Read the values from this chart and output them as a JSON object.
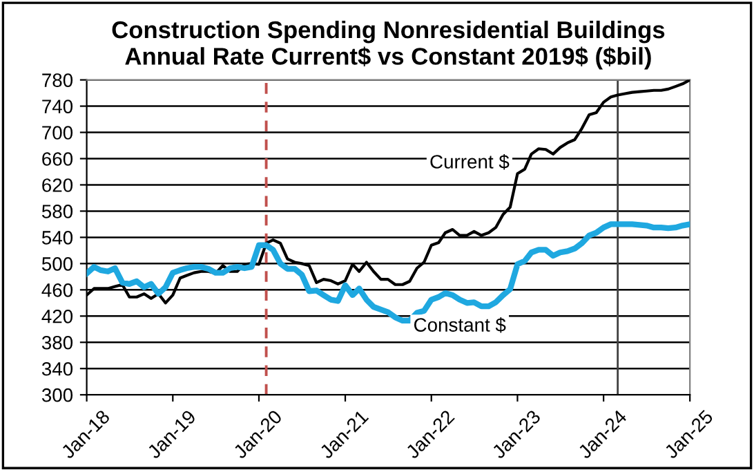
{
  "chart_data": {
    "type": "line",
    "title": "Construction Spending Nonresidential Buildings\nAnnual Rate Current$ vs Constant 2019$ ($bil)",
    "x": [
      "2018-01",
      "2018-02",
      "2018-03",
      "2018-04",
      "2018-05",
      "2018-06",
      "2018-07",
      "2018-08",
      "2018-09",
      "2018-10",
      "2018-11",
      "2018-12",
      "2019-01",
      "2019-02",
      "2019-03",
      "2019-04",
      "2019-05",
      "2019-06",
      "2019-07",
      "2019-08",
      "2019-09",
      "2019-10",
      "2019-11",
      "2019-12",
      "2020-01",
      "2020-02",
      "2020-03",
      "2020-04",
      "2020-05",
      "2020-06",
      "2020-07",
      "2020-08",
      "2020-09",
      "2020-10",
      "2020-11",
      "2020-12",
      "2021-01",
      "2021-02",
      "2021-03",
      "2021-04",
      "2021-05",
      "2021-06",
      "2021-07",
      "2021-08",
      "2021-09",
      "2021-10",
      "2021-11",
      "2021-12",
      "2022-01",
      "2022-02",
      "2022-03",
      "2022-04",
      "2022-05",
      "2022-06",
      "2022-07",
      "2022-08",
      "2022-09",
      "2022-10",
      "2022-11",
      "2022-12",
      "2023-01",
      "2023-02",
      "2023-03",
      "2023-04",
      "2023-05",
      "2023-06",
      "2023-07",
      "2023-08",
      "2023-09",
      "2023-10",
      "2023-11",
      "2023-12",
      "2024-01",
      "2024-02",
      "2024-03",
      "2024-04",
      "2024-05",
      "2024-06",
      "2024-07",
      "2024-08",
      "2024-09",
      "2024-10",
      "2024-11",
      "2024-12",
      "2025-01"
    ],
    "series": [
      {
        "name": "Current $",
        "color": "#000000",
        "values": [
          452,
          462,
          462,
          462,
          465,
          468,
          449,
          449,
          454,
          447,
          454,
          440,
          452,
          478,
          482,
          486,
          488,
          488,
          485,
          497,
          488,
          488,
          499,
          500,
          499,
          531,
          536,
          531,
          507,
          502,
          500,
          497,
          471,
          476,
          474,
          469,
          474,
          499,
          488,
          502,
          488,
          476,
          476,
          468,
          468,
          473,
          493,
          502,
          528,
          532,
          547,
          552,
          543,
          543,
          549,
          543,
          547,
          555,
          575,
          586,
          637,
          644,
          667,
          675,
          674,
          667,
          677,
          684,
          689,
          706,
          727,
          730,
          746,
          754,
          757,
          759,
          761,
          762,
          763,
          764,
          764,
          766,
          770,
          774,
          780
        ]
      },
      {
        "name": "Constant $",
        "color": "#1fa8e0",
        "values": [
          485,
          495,
          490,
          488,
          493,
          471,
          469,
          473,
          464,
          469,
          454,
          464,
          486,
          490,
          493,
          495,
          495,
          492,
          486,
          486,
          493,
          495,
          493,
          495,
          528,
          528,
          521,
          500,
          492,
          492,
          483,
          458,
          459,
          452,
          445,
          443,
          467,
          452,
          462,
          445,
          434,
          430,
          426,
          418,
          413,
          413,
          425,
          428,
          445,
          449,
          455,
          452,
          445,
          440,
          441,
          435,
          435,
          441,
          452,
          461,
          499,
          504,
          517,
          521,
          521,
          512,
          517,
          519,
          523,
          531,
          543,
          547,
          555,
          560,
          560,
          560,
          560,
          559,
          558,
          555,
          555,
          554,
          555,
          558,
          560
        ]
      }
    ],
    "xlim": [
      "2018-01",
      "2025-01"
    ],
    "xticks": [
      {
        "value": "2018-01",
        "label": "Jan-18"
      },
      {
        "value": "2019-01",
        "label": "Jan-19"
      },
      {
        "value": "2020-01",
        "label": "Jan-20"
      },
      {
        "value": "2021-01",
        "label": "Jan-21"
      },
      {
        "value": "2022-01",
        "label": "Jan-22"
      },
      {
        "value": "2023-01",
        "label": "Jan-23"
      },
      {
        "value": "2024-01",
        "label": "Jan-24"
      },
      {
        "value": "2025-01",
        "label": "Jan-25"
      }
    ],
    "ylim": [
      300,
      780
    ],
    "yticks": [
      300,
      340,
      380,
      420,
      460,
      500,
      540,
      580,
      620,
      660,
      700,
      740,
      780
    ],
    "grid": "y",
    "marker": "none",
    "line_style": "solid",
    "ref_lines": [
      {
        "axis": "x",
        "value": "2020-02",
        "color": "#c0504d",
        "line_style": "dashed"
      },
      {
        "axis": "x",
        "value": "2024-03",
        "color": "#404040",
        "line_style": "solid"
      }
    ]
  }
}
